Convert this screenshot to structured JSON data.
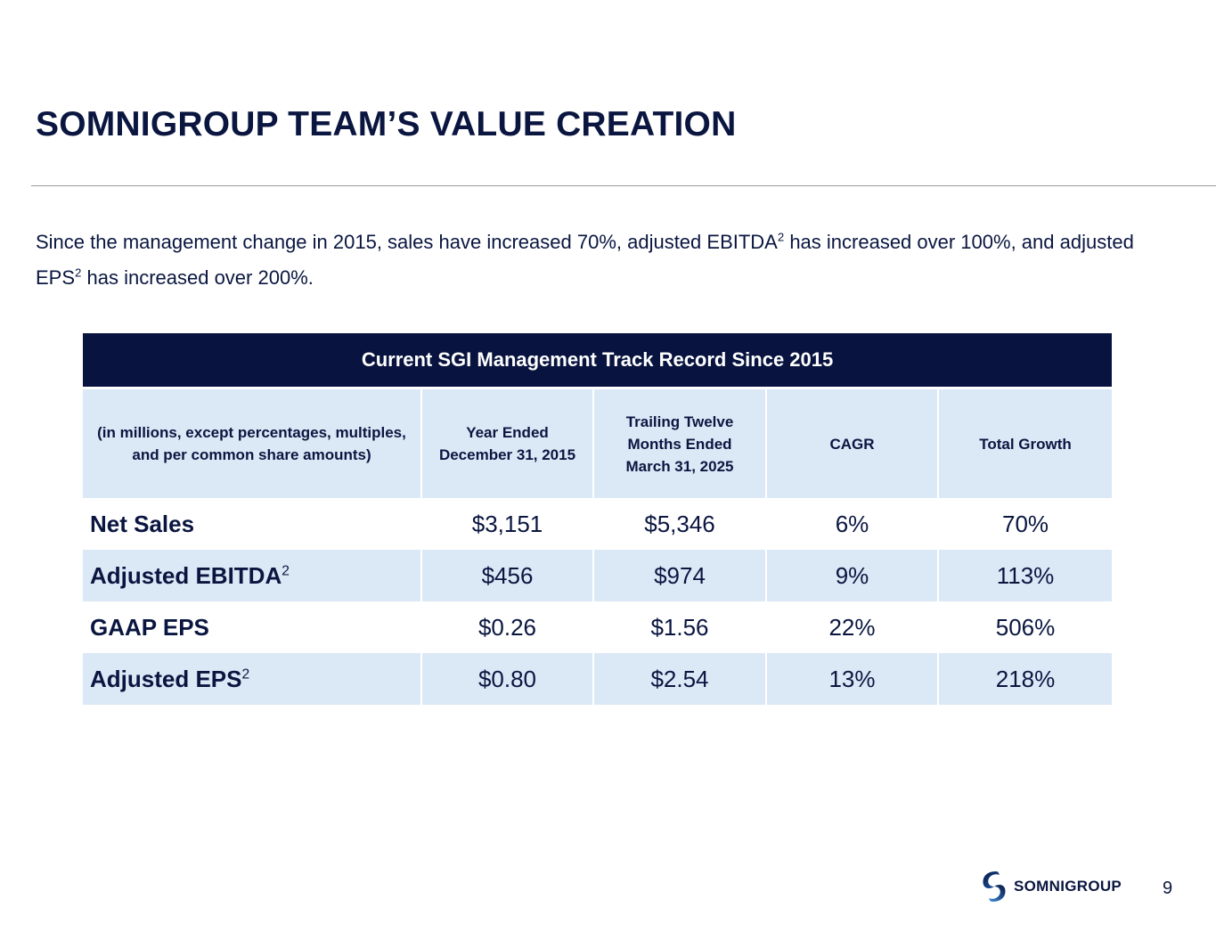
{
  "slide": {
    "title": "SOMNIGROUP TEAM’S VALUE CREATION",
    "intro": {
      "part1": "Since the management change in 2015, sales have increased 70%, adjusted EBITDA",
      "sup1": "2",
      "part2": " has increased over 100%, and adjusted EPS",
      "sup2": "2",
      "part3": " has increased over 200%."
    },
    "page_number": "9"
  },
  "table": {
    "banner": "Current SGI Management Track Record Since 2015",
    "headers": [
      "(in millions, except percentages, multiples, and per common share amounts)",
      "Year Ended December 31, 2015",
      "Trailing Twelve Months Ended March 31, 2025",
      "CAGR",
      "Total Growth"
    ],
    "rows": [
      {
        "label": "Net Sales",
        "sup": "",
        "values": [
          "$3,151",
          "$5,346",
          "6%",
          "70%"
        ]
      },
      {
        "label": "Adjusted EBITDA",
        "sup": "2",
        "values": [
          "$456",
          "$974",
          "9%",
          "113%"
        ]
      },
      {
        "label": "GAAP EPS",
        "sup": "",
        "values": [
          "$0.26",
          "$1.56",
          "22%",
          "506%"
        ]
      },
      {
        "label": "Adjusted EPS",
        "sup": "2",
        "values": [
          "$0.80",
          "$2.54",
          "13%",
          "218%"
        ]
      }
    ]
  },
  "logo": {
    "icon": "somnigroup-logo-mark",
    "text": "SOMNIGROUP"
  },
  "colors": {
    "navy": "#08143f",
    "light_blue": "#dbe8f6"
  }
}
